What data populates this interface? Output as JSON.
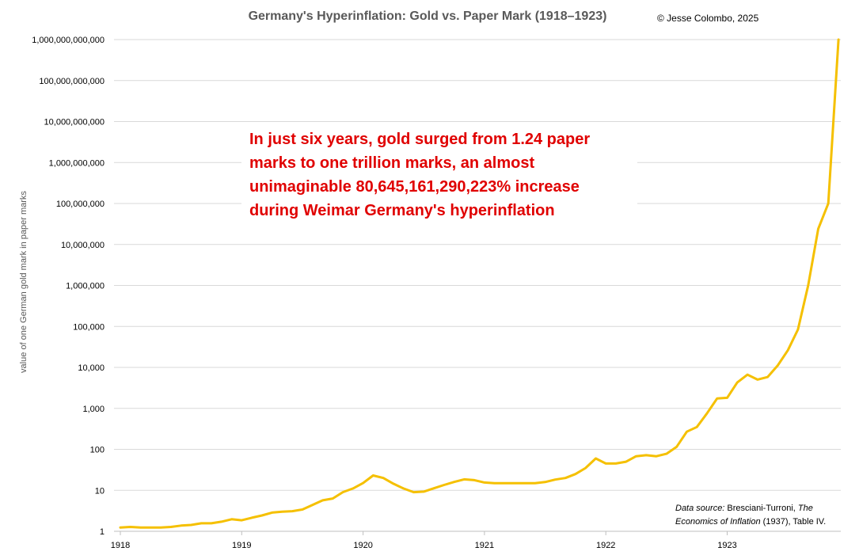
{
  "chart_data": {
    "type": "line",
    "title": "Germany's Hyperinflation: Gold vs. Paper Mark (1918–1923)",
    "copyright": "© Jesse Colombo, 2025",
    "ylabel": "value of one German gold mark in paper marks",
    "xlabel": "",
    "yscale": "log",
    "ylim": [
      1,
      1000000000000
    ],
    "xlim": [
      1918,
      1923.95
    ],
    "grid": true,
    "y_ticks": [
      {
        "value": 1,
        "label": "1"
      },
      {
        "value": 10,
        "label": "10"
      },
      {
        "value": 100,
        "label": "100"
      },
      {
        "value": 1000,
        "label": "1,000"
      },
      {
        "value": 10000,
        "label": "10,000"
      },
      {
        "value": 100000,
        "label": "100,000"
      },
      {
        "value": 1000000,
        "label": "1,000,000"
      },
      {
        "value": 10000000,
        "label": "10,000,000"
      },
      {
        "value": 100000000,
        "label": "100,000,000"
      },
      {
        "value": 1000000000,
        "label": "1,000,000,000"
      },
      {
        "value": 10000000000,
        "label": "10,000,000,000"
      },
      {
        "value": 100000000000,
        "label": "100,000,000,000"
      },
      {
        "value": 1000000000000,
        "label": "1,000,000,000,000"
      }
    ],
    "x_ticks": [
      {
        "value": 1918,
        "label": "1918"
      },
      {
        "value": 1919,
        "label": "1919"
      },
      {
        "value": 1920,
        "label": "1920"
      },
      {
        "value": 1921,
        "label": "1921"
      },
      {
        "value": 1922,
        "label": "1922"
      },
      {
        "value": 1923,
        "label": "1923"
      }
    ],
    "series": [
      {
        "name": "Gold mark in paper marks",
        "color": "#f5c000",
        "x": [
          1918.0,
          1918.083,
          1918.167,
          1918.25,
          1918.333,
          1918.417,
          1918.5,
          1918.583,
          1918.667,
          1918.75,
          1918.833,
          1918.917,
          1919.0,
          1919.083,
          1919.167,
          1919.25,
          1919.333,
          1919.417,
          1919.5,
          1919.583,
          1919.667,
          1919.75,
          1919.833,
          1919.917,
          1920.0,
          1920.083,
          1920.167,
          1920.25,
          1920.333,
          1920.417,
          1920.5,
          1920.583,
          1920.667,
          1920.75,
          1920.833,
          1920.917,
          1921.0,
          1921.083,
          1921.167,
          1921.25,
          1921.333,
          1921.417,
          1921.5,
          1921.583,
          1921.667,
          1921.75,
          1921.833,
          1921.917,
          1922.0,
          1922.083,
          1922.167,
          1922.25,
          1922.333,
          1922.417,
          1922.5,
          1922.583,
          1922.667,
          1922.75,
          1922.833,
          1922.917,
          1923.0,
          1923.083,
          1923.167,
          1923.25,
          1923.333,
          1923.417,
          1923.5,
          1923.583,
          1923.667,
          1923.75,
          1923.833,
          1923.917
        ],
        "values": [
          1.24,
          1.28,
          1.24,
          1.24,
          1.24,
          1.28,
          1.38,
          1.43,
          1.57,
          1.57,
          1.71,
          1.97,
          1.86,
          2.14,
          2.43,
          2.86,
          3.0,
          3.1,
          3.4,
          4.4,
          5.7,
          6.3,
          9.0,
          11.1,
          15.0,
          23.0,
          20.0,
          14.5,
          11.1,
          9.0,
          9.3,
          11.2,
          13.5,
          16.0,
          18.5,
          17.7,
          15.5,
          14.9,
          14.9,
          14.9,
          14.9,
          14.9,
          15.9,
          18.3,
          20.0,
          25.0,
          35.0,
          60.0,
          45.0,
          45.0,
          50.0,
          68.0,
          72.0,
          68.0,
          78.0,
          115.0,
          270.0,
          350.0,
          750.0,
          1750.0,
          1810.0,
          4280.0,
          6650.0,
          5050.0,
          5800.0,
          11200.0,
          26300.0,
          84200.0,
          1000000.0,
          24000000.0,
          100000000.0,
          1000000000000.0
        ]
      }
    ]
  },
  "annotation": {
    "lines": [
      "In just six years, gold surged from 1.24 paper",
      "marks to one trillion marks, an almost",
      "unimaginable 80,645,161,290,223% increase",
      "during Weimar Germany's hyperinflation"
    ]
  },
  "source": {
    "prefix": "Data source:",
    "text1": " Bresciani-Turroni, ",
    "book_a": "The",
    "book_b": "Economics of Inflation",
    "text2": " (1937), Table IV."
  }
}
